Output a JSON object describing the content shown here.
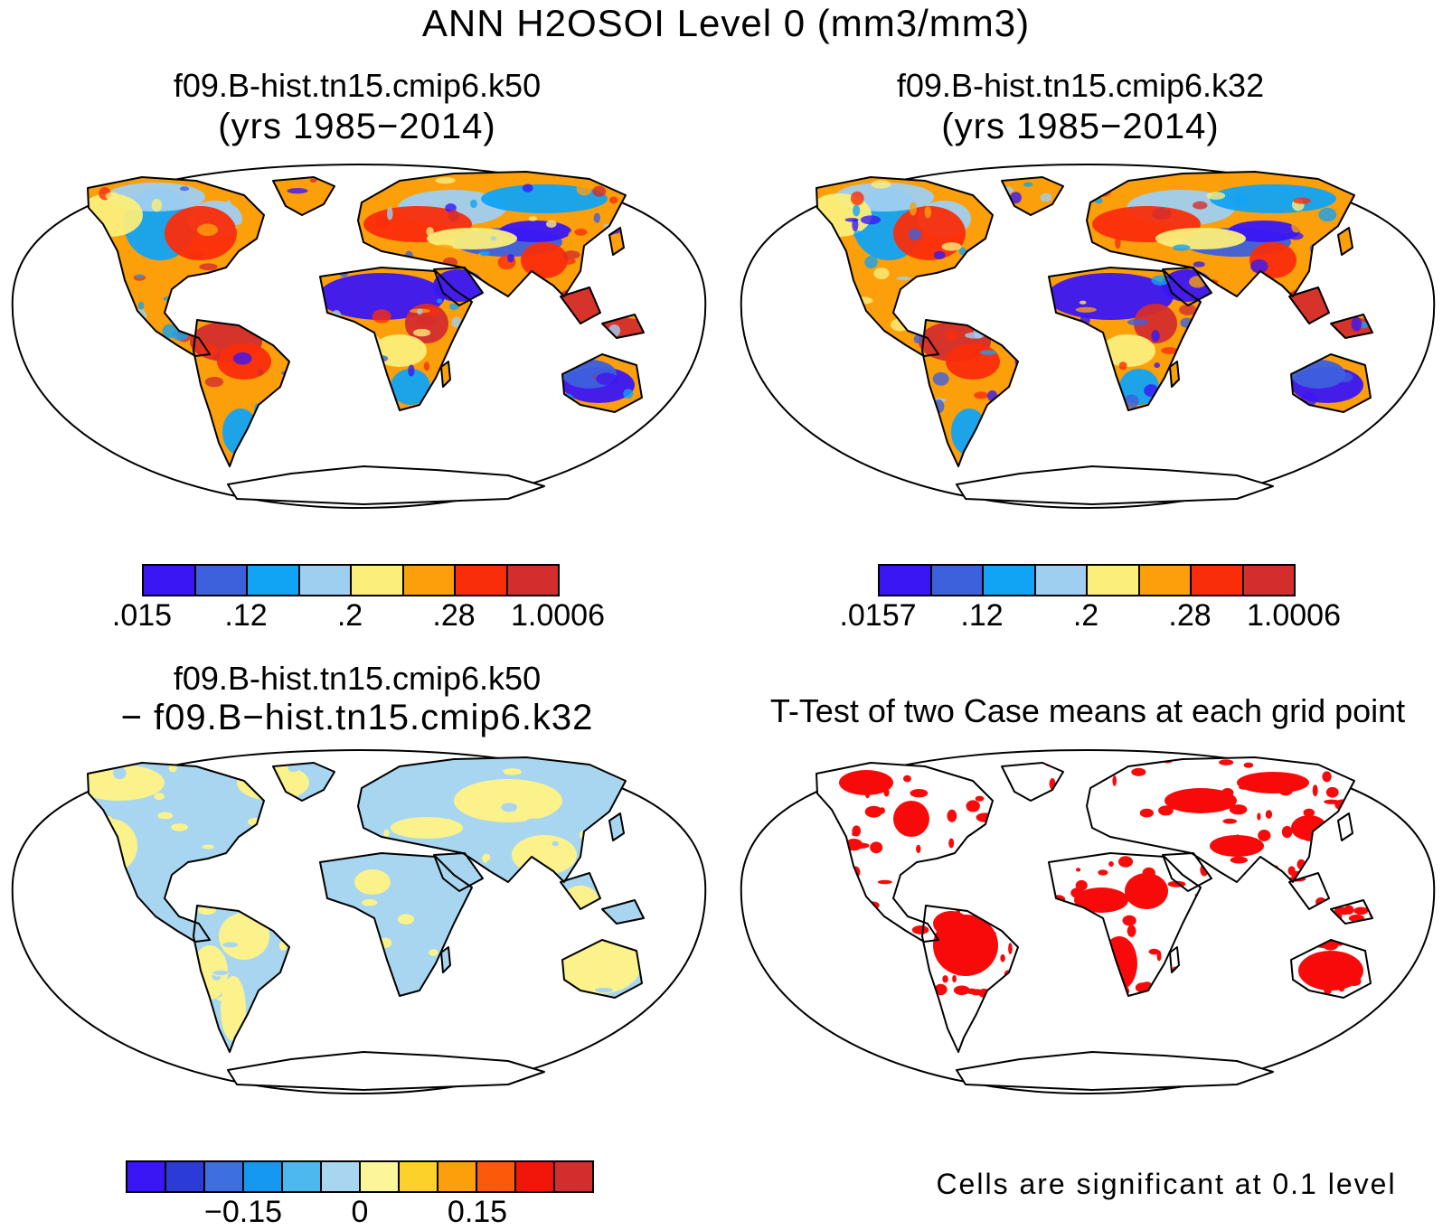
{
  "title": "ANN H2OSOI Level 0 (mm3/mm3)",
  "panels": [
    {
      "id": "case1",
      "title": "f09.B-hist.tn15.cmip6.k50",
      "subtitle": "(yrs 1985−2014)",
      "colorbar": {
        "colors": [
          "#3a16f5",
          "#3d60dd",
          "#11a3f4",
          "#9fcff0",
          "#fbee7a",
          "#fb9f0a",
          "#fa2d0b",
          "#d42d2d"
        ],
        "labels": [
          ".015",
          ".12",
          ".2",
          ".28",
          "1.0006"
        ]
      }
    },
    {
      "id": "case2",
      "title": "f09.B-hist.tn15.cmip6.k32",
      "subtitle": "(yrs 1985−2014)",
      "colorbar": {
        "colors": [
          "#3a16f5",
          "#3d60dd",
          "#11a3f4",
          "#9fcff0",
          "#fbee7a",
          "#fb9f0a",
          "#fa2d0b",
          "#d42d2d"
        ],
        "labels": [
          ".0157",
          ".12",
          ".2",
          ".28",
          "1.0006"
        ]
      }
    },
    {
      "id": "diff",
      "title": "f09.B-hist.tn15.cmip6.k50",
      "subtitle": "− f09.B−hist.tn15.cmip6.k32",
      "colorbar": {
        "colors": [
          "#3a16f5",
          "#2a3bd8",
          "#3d6fe0",
          "#1598f0",
          "#4bb9ee",
          "#a8d6f0",
          "#fdf59a",
          "#fcd22a",
          "#fb9f0a",
          "#fb5a0a",
          "#f2160a",
          "#d42d2d"
        ],
        "labels": [
          "−0.15",
          "0",
          "0.15"
        ]
      }
    },
    {
      "id": "ttest",
      "title": "T-Test of two Case means at each grid point",
      "note": "Cells are significant at 0.1 level"
    }
  ]
}
